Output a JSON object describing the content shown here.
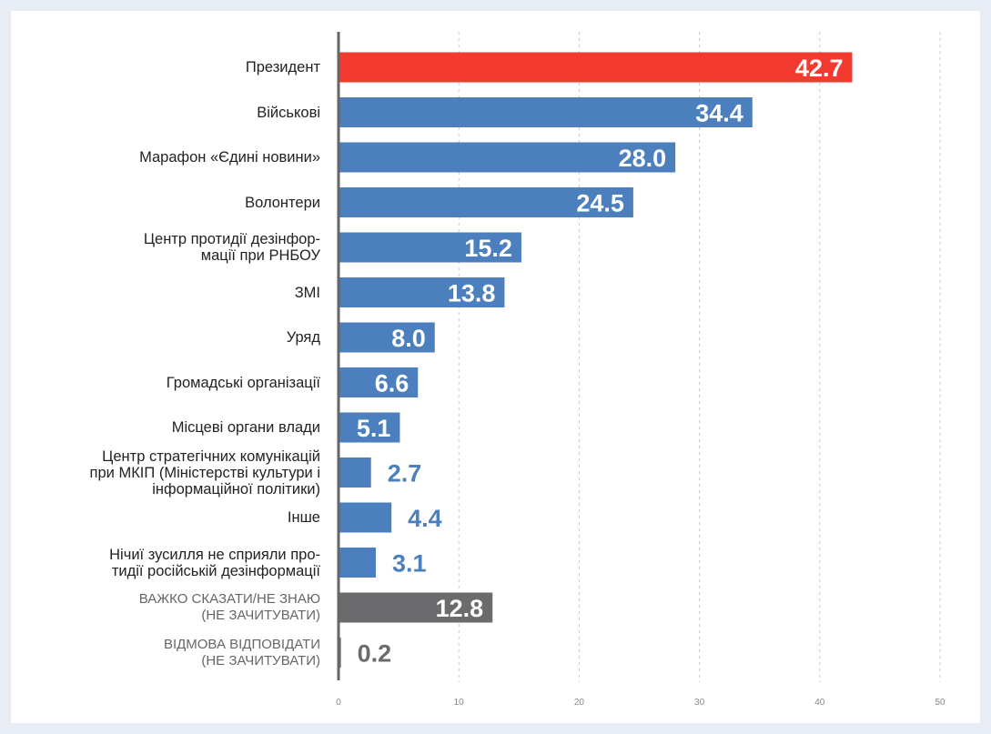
{
  "chart_data": {
    "type": "bar",
    "orientation": "horizontal",
    "categories": [
      "Президент",
      "Військові",
      "Марафон «Єдині новини»",
      "Волонтери",
      "Центр протидії дезінфор-\nмації при РНБОУ",
      "ЗМІ",
      "Уряд",
      "Громадські організації",
      "Місцеві органи влади",
      "Центр стратегічних комунікацій\nпри МКІП (Міністерстві культури і\nінформаційної політики)",
      "Інше",
      "Нічиї зусилля не сприяли про-\nтидії російській дезінформації",
      "ВАЖКО СКАЗАТИ/НЕ ЗНАЮ\n(НЕ ЗАЧИТУВАТИ)",
      "ВІДМОВА ВІДПОВІДАТИ\n(НЕ ЗАЧИТУВАТИ)"
    ],
    "values": [
      42.7,
      34.4,
      28.0,
      24.5,
      15.2,
      13.8,
      8.0,
      6.6,
      5.1,
      2.7,
      4.4,
      3.1,
      12.8,
      0.2
    ],
    "value_labels": [
      "42.7",
      "34.4",
      "28.0",
      "24.5",
      "15.2",
      "13.8",
      "8.0",
      "6.6",
      "5.1",
      "2.7",
      "4.4",
      "3.1",
      "12.8",
      "0.2"
    ],
    "colors": [
      "#f23a2f",
      "#4b7fbd",
      "#4b7fbd",
      "#4b7fbd",
      "#4b7fbd",
      "#4b7fbd",
      "#4b7fbd",
      "#4b7fbd",
      "#4b7fbd",
      "#4b7fbd",
      "#4b7fbd",
      "#4b7fbd",
      "#6b6b6e",
      "#6b6b6e"
    ],
    "xlim": [
      0,
      50
    ],
    "xticks": [
      0,
      10,
      20,
      30,
      40,
      50
    ],
    "grid": true
  }
}
